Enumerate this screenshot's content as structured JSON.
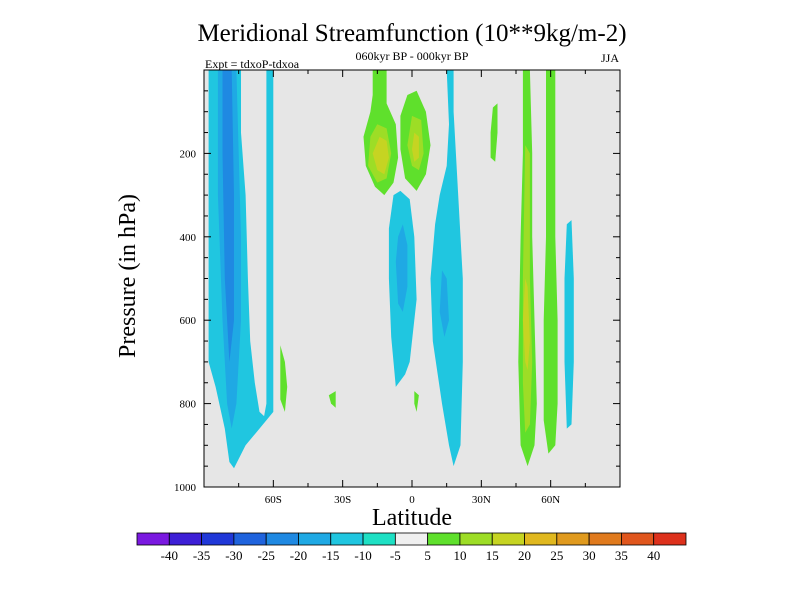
{
  "chart_data": {
    "type": "heatmap",
    "title": "Meridional Streamfunction (10**9kg/m-2)",
    "subtitle_center": "060kyr BP - 000kyr BP",
    "subtitle_left": "Expt = tdxoP-tdxoa",
    "subtitle_right": "JJA",
    "xlabel": "Latitude",
    "ylabel": "Pressure (in hPa)",
    "xlim": [
      -90,
      90
    ],
    "ylim": [
      0,
      1000
    ],
    "y_reversed": true,
    "x_ticks": [
      {
        "value": -60,
        "label": "60S"
      },
      {
        "value": -30,
        "label": "30S"
      },
      {
        "value": 0,
        "label": "0"
      },
      {
        "value": 30,
        "label": "30N"
      },
      {
        "value": 60,
        "label": "60N"
      }
    ],
    "y_ticks": [
      {
        "value": 200,
        "label": "200"
      },
      {
        "value": 400,
        "label": "400"
      },
      {
        "value": 600,
        "label": "600"
      },
      {
        "value": 800,
        "label": "800"
      },
      {
        "value": 1000,
        "label": "1000"
      }
    ],
    "background_color": "#e6e6e6",
    "colorbar": {
      "levels": [
        "-40",
        "-35",
        "-30",
        "-25",
        "-20",
        "-15",
        "-10",
        "-5",
        "5",
        "10",
        "15",
        "20",
        "25",
        "30",
        "35",
        "40"
      ],
      "colors": [
        "#7a19e0",
        "#3d1fd6",
        "#2038d8",
        "#1f63dd",
        "#1f89e2",
        "#1fa9e4",
        "#20c6e0",
        "#1ee0c4",
        "#f0f0f0",
        "#5fe02c",
        "#9ddd26",
        "#c6d422",
        "#e0b81f",
        "#e09a1e",
        "#e07a1d",
        "#e0561d",
        "#dd311c"
      ]
    },
    "regions": [
      {
        "fill": "#20c6e0",
        "pts": [
          [
            -88,
            0
          ],
          [
            -74,
            0
          ],
          [
            -74,
            150
          ],
          [
            -72,
            300
          ],
          [
            -71,
            500
          ],
          [
            -70,
            650
          ],
          [
            -68,
            750
          ],
          [
            -66,
            820
          ],
          [
            -64,
            830
          ],
          [
            -63,
            800
          ],
          [
            -63,
            0
          ],
          [
            -60,
            0
          ],
          [
            -60,
            820
          ],
          [
            -66,
            860
          ],
          [
            -72,
            900
          ],
          [
            -77,
            955
          ],
          [
            -79,
            940
          ],
          [
            -81,
            860
          ],
          [
            -85,
            760
          ],
          [
            -88,
            700
          ]
        ]
      },
      {
        "fill": "#1fa9e4",
        "pts": [
          [
            -84,
            0
          ],
          [
            -76,
            0
          ],
          [
            -75,
            200
          ],
          [
            -74,
            400
          ],
          [
            -74,
            600
          ],
          [
            -76,
            800
          ],
          [
            -78,
            860
          ],
          [
            -80,
            800
          ],
          [
            -82,
            600
          ],
          [
            -84,
            300
          ]
        ]
      },
      {
        "fill": "#1f89e2",
        "pts": [
          [
            -82,
            0
          ],
          [
            -78,
            0
          ],
          [
            -77,
            300
          ],
          [
            -77,
            600
          ],
          [
            -79,
            700
          ],
          [
            -81,
            500
          ],
          [
            -82,
            200
          ]
        ]
      },
      {
        "fill": "#5fe02c",
        "pts": [
          [
            -57,
            660
          ],
          [
            -55,
            700
          ],
          [
            -54,
            760
          ],
          [
            -55,
            820
          ],
          [
            -57,
            790
          ]
        ]
      },
      {
        "fill": "#5fe02c",
        "pts": [
          [
            -36,
            780
          ],
          [
            -33,
            770
          ],
          [
            -33,
            810
          ],
          [
            -35,
            800
          ]
        ]
      },
      {
        "fill": "#5fe02c",
        "pts": [
          [
            -17,
            0
          ],
          [
            -11,
            0
          ],
          [
            -11,
            80
          ],
          [
            -7,
            130
          ],
          [
            -6,
            210
          ],
          [
            -8,
            270
          ],
          [
            -12,
            300
          ],
          [
            -16,
            280
          ],
          [
            -20,
            230
          ],
          [
            -21,
            160
          ],
          [
            -18,
            100
          ],
          [
            -17,
            60
          ]
        ]
      },
      {
        "fill": "#9ddd26",
        "pts": [
          [
            -15,
            130
          ],
          [
            -11,
            140
          ],
          [
            -9,
            200
          ],
          [
            -11,
            260
          ],
          [
            -15,
            270
          ],
          [
            -19,
            230
          ],
          [
            -18,
            160
          ]
        ]
      },
      {
        "fill": "#c6d422",
        "pts": [
          [
            -14,
            160
          ],
          [
            -11,
            170
          ],
          [
            -10,
            210
          ],
          [
            -12,
            250
          ],
          [
            -15,
            240
          ],
          [
            -17,
            200
          ]
        ]
      },
      {
        "fill": "#5fe02c",
        "pts": [
          [
            -2,
            60
          ],
          [
            2,
            50
          ],
          [
            6,
            100
          ],
          [
            8,
            180
          ],
          [
            6,
            250
          ],
          [
            2,
            290
          ],
          [
            -3,
            260
          ],
          [
            -5,
            190
          ],
          [
            -5,
            110
          ]
        ]
      },
      {
        "fill": "#9ddd26",
        "pts": [
          [
            0,
            110
          ],
          [
            4,
            120
          ],
          [
            5,
            200
          ],
          [
            3,
            240
          ],
          [
            0,
            230
          ],
          [
            -2,
            180
          ]
        ]
      },
      {
        "fill": "#c6d422",
        "pts": [
          [
            1,
            150
          ],
          [
            3,
            160
          ],
          [
            3,
            210
          ],
          [
            1,
            220
          ],
          [
            0,
            190
          ]
        ]
      },
      {
        "fill": "#20c6e0",
        "pts": [
          [
            -5,
            290
          ],
          [
            -1,
            310
          ],
          [
            1,
            400
          ],
          [
            2,
            550
          ],
          [
            -1,
            700
          ],
          [
            -3,
            730
          ],
          [
            -7,
            760
          ],
          [
            -9,
            640
          ],
          [
            -10,
            500
          ],
          [
            -10,
            380
          ],
          [
            -8,
            300
          ]
        ]
      },
      {
        "fill": "#1fa9e4",
        "pts": [
          [
            -4,
            370
          ],
          [
            -2,
            420
          ],
          [
            -2,
            520
          ],
          [
            -4,
            580
          ],
          [
            -6,
            560
          ],
          [
            -7,
            460
          ],
          [
            -6,
            400
          ]
        ]
      },
      {
        "fill": "#5fe02c",
        "pts": [
          [
            1,
            770
          ],
          [
            3,
            780
          ],
          [
            2,
            820
          ],
          [
            1,
            800
          ]
        ]
      },
      {
        "fill": "#20c6e0",
        "pts": [
          [
            15,
            0
          ],
          [
            18,
            0
          ],
          [
            18,
            100
          ],
          [
            20,
            300
          ],
          [
            22,
            500
          ],
          [
            22,
            700
          ],
          [
            21,
            900
          ],
          [
            18,
            950
          ],
          [
            16,
            900
          ],
          [
            13,
            800
          ],
          [
            9,
            650
          ],
          [
            8,
            500
          ],
          [
            10,
            370
          ],
          [
            12,
            300
          ],
          [
            15,
            230
          ],
          [
            16,
            130
          ]
        ]
      },
      {
        "fill": "#1fa9e4",
        "pts": [
          [
            13,
            480
          ],
          [
            15,
            500
          ],
          [
            16,
            600
          ],
          [
            14,
            640
          ],
          [
            12,
            580
          ]
        ]
      },
      {
        "fill": "#5fe02c",
        "pts": [
          [
            35,
            90
          ],
          [
            37,
            80
          ],
          [
            37,
            150
          ],
          [
            36,
            220
          ],
          [
            34,
            210
          ],
          [
            34,
            150
          ]
        ]
      },
      {
        "fill": "#5fe02c",
        "pts": [
          [
            48,
            0
          ],
          [
            51,
            0
          ],
          [
            52,
            200
          ],
          [
            52,
            400
          ],
          [
            53,
            600
          ],
          [
            54,
            800
          ],
          [
            53,
            900
          ],
          [
            50,
            950
          ],
          [
            47,
            900
          ],
          [
            46,
            700
          ],
          [
            47,
            400
          ],
          [
            48,
            200
          ]
        ]
      },
      {
        "fill": "#9ddd26",
        "pts": [
          [
            49,
            180
          ],
          [
            51,
            200
          ],
          [
            51,
            500
          ],
          [
            52,
            700
          ],
          [
            51,
            850
          ],
          [
            49,
            870
          ],
          [
            48,
            750
          ],
          [
            48,
            500
          ]
        ]
      },
      {
        "fill": "#c6d422",
        "pts": [
          [
            49,
            500
          ],
          [
            50,
            520
          ],
          [
            51,
            650
          ],
          [
            50,
            720
          ],
          [
            49,
            700
          ],
          [
            48,
            600
          ]
        ]
      },
      {
        "fill": "#5fe02c",
        "pts": [
          [
            58,
            0
          ],
          [
            62,
            0
          ],
          [
            62,
            400
          ],
          [
            63,
            600
          ],
          [
            63,
            800
          ],
          [
            62,
            900
          ],
          [
            59,
            920
          ],
          [
            57,
            840
          ],
          [
            57,
            600
          ],
          [
            58,
            400
          ]
        ]
      },
      {
        "fill": "#20c6e0",
        "pts": [
          [
            67,
            370
          ],
          [
            69,
            360
          ],
          [
            70,
            500
          ],
          [
            70,
            700
          ],
          [
            69,
            850
          ],
          [
            67,
            860
          ],
          [
            66,
            700
          ],
          [
            66,
            500
          ]
        ]
      }
    ]
  }
}
